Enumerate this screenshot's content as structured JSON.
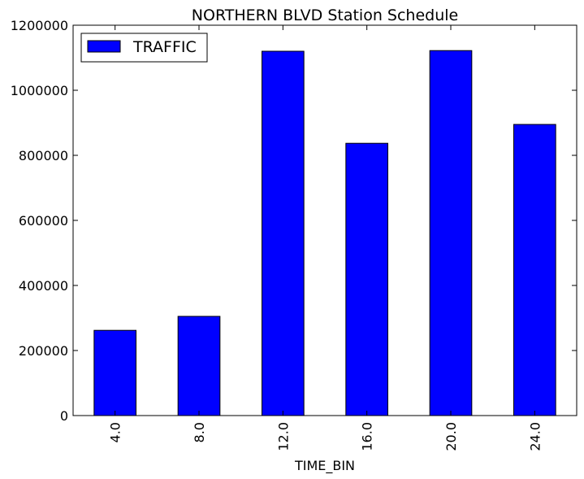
{
  "chart_data": {
    "type": "bar",
    "title": "NORTHERN BLVD Station Schedule",
    "xlabel": "TIME_BIN",
    "ylabel": "",
    "categories": [
      "4.0",
      "8.0",
      "12.0",
      "16.0",
      "20.0",
      "24.0"
    ],
    "series": [
      {
        "name": "TRAFFIC",
        "values": [
          262000,
          305000,
          1120000,
          837000,
          1122000,
          895000
        ],
        "color": "#0000ff"
      }
    ],
    "ylim": [
      0,
      1200000
    ],
    "yticks": [
      0,
      200000,
      400000,
      600000,
      800000,
      1000000,
      1200000
    ],
    "ytick_labels": [
      "0",
      "200000",
      "400000",
      "600000",
      "800000",
      "1000000",
      "1200000"
    ],
    "grid": false,
    "legend_position": "top-left"
  }
}
